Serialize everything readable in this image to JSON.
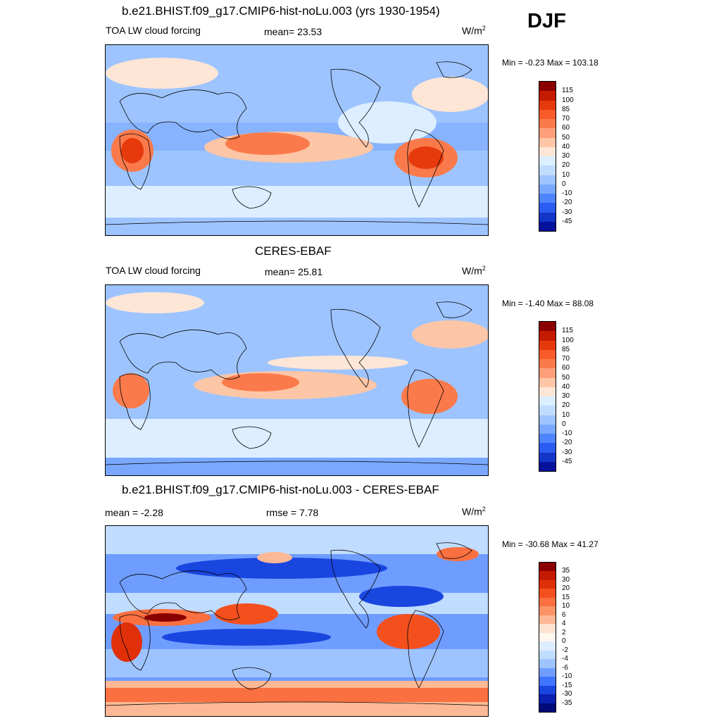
{
  "season": "DJF",
  "panels": [
    {
      "id": "model",
      "title": "b.e21.BHIST.f09_g17.CMIP6-hist-noLu.003 (yrs 1930-1954)",
      "left_label": "TOA LW cloud forcing",
      "center_label": "mean=  23.53",
      "units": "W/m",
      "units_sup": "2",
      "minmax": "Min =  -0.23 Max = 103.18",
      "colorbar": {
        "labels": [
          "115",
          "100",
          "85",
          "70",
          "60",
          "50",
          "40",
          "30",
          "20",
          "10",
          "0",
          "-10",
          "-20",
          "-30",
          "-45"
        ],
        "colors": [
          "#8a0000",
          "#c41a00",
          "#e63a0c",
          "#f85a2a",
          "#fb7a4b",
          "#fc9f7a",
          "#fdc6a6",
          "#fde6d6",
          "#dceeff",
          "#bfdcff",
          "#9ec4ff",
          "#7aa8ff",
          "#4f84ff",
          "#2a5cf2",
          "#1436c8",
          "#06129c"
        ]
      }
    },
    {
      "id": "obs",
      "title": "CERES-EBAF",
      "left_label": "TOA LW cloud forcing",
      "center_label": "mean=  25.81",
      "units": "W/m",
      "units_sup": "2",
      "minmax": "Min =  -1.40 Max =  88.08",
      "colorbar": {
        "labels": [
          "115",
          "100",
          "85",
          "70",
          "60",
          "50",
          "40",
          "30",
          "20",
          "10",
          "0",
          "-10",
          "-20",
          "-30",
          "-45"
        ],
        "colors": [
          "#8a0000",
          "#c41a00",
          "#e63a0c",
          "#f85a2a",
          "#fb7a4b",
          "#fc9f7a",
          "#fdc6a6",
          "#fde6d6",
          "#dceeff",
          "#bfdcff",
          "#9ec4ff",
          "#7aa8ff",
          "#4f84ff",
          "#2a5cf2",
          "#1436c8",
          "#06129c"
        ]
      }
    },
    {
      "id": "diff",
      "title": "b.e21.BHIST.f09_g17.CMIP6-hist-noLu.003 - CERES-EBAF",
      "left_label": "mean =  -2.28",
      "center_label": "rmse =   7.78",
      "units": "W/m",
      "units_sup": "2",
      "minmax": "Min = -30.68 Max =  41.27",
      "colorbar": {
        "labels": [
          "35",
          "30",
          "20",
          "15",
          "10",
          "6",
          "4",
          "2",
          "0",
          "-2",
          "-4",
          "-6",
          "-10",
          "-15",
          "-30",
          "-35"
        ],
        "colors": [
          "#8a0000",
          "#c41a00",
          "#e0300a",
          "#f4501e",
          "#fa7040",
          "#fc9468",
          "#fdb895",
          "#fde2d0",
          "#fff6ee",
          "#deedff",
          "#c0dcff",
          "#9ec4ff",
          "#6f9dff",
          "#3f74ff",
          "#1a46e0",
          "#0a20b0",
          "#000a78"
        ]
      }
    }
  ],
  "map_palette": {
    "ocean_low": "#9ec4ff",
    "ocean_mid": "#7aa8ff",
    "pale": "#dceeff",
    "warm_pale": "#fde6d6",
    "warm": "#fc9f7a",
    "hot": "#e63a0c",
    "deep_blue": "#1436c8",
    "coast": "#000000"
  }
}
